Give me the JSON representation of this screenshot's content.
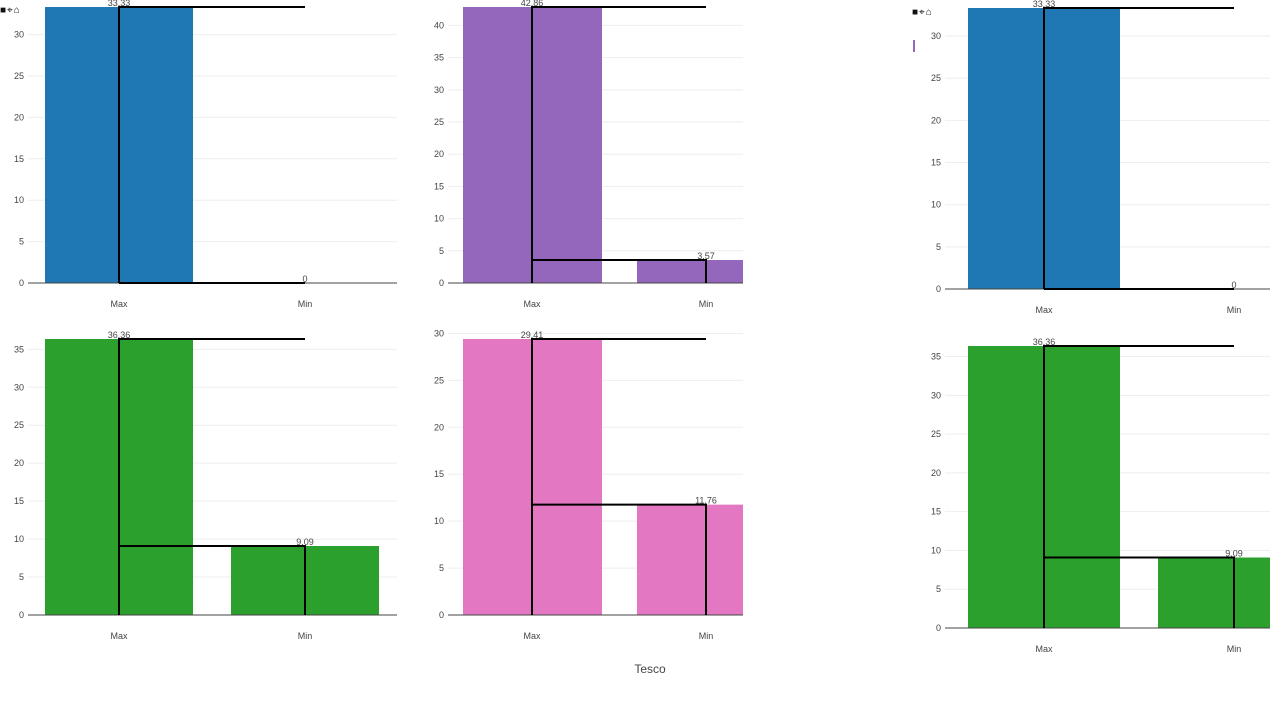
{
  "x_axis_title": "Tesco",
  "toolbar": {
    "icons": [
      "save-icon",
      "zoom-icon",
      "home-icon"
    ],
    "glyphs": [
      "■",
      "⌖",
      "⌂"
    ]
  },
  "legend": {
    "accent": "#9467bd"
  },
  "chart_data": [
    {
      "type": "bar",
      "id": "top-left",
      "categories": [
        "Max",
        "Min"
      ],
      "values": [
        33.33,
        0
      ],
      "value_labels": [
        "33.33",
        "0"
      ],
      "ylim": [
        0,
        33.33
      ],
      "yticks": [
        0,
        5,
        10,
        15,
        20,
        25,
        30
      ],
      "color": "#1f77b4",
      "overlay": "step"
    },
    {
      "type": "bar",
      "id": "top-middle",
      "categories": [
        "Max",
        "Min"
      ],
      "values": [
        42.86,
        3.57
      ],
      "value_labels": [
        "42.86",
        "3.57"
      ],
      "ylim": [
        0,
        42.86
      ],
      "yticks": [
        0,
        5,
        10,
        15,
        20,
        25,
        30,
        35,
        40
      ],
      "color": "#9467bd",
      "overlay": "step"
    },
    {
      "type": "bar",
      "id": "top-right",
      "categories": [
        "Max",
        "Min"
      ],
      "values": [
        33.33,
        0
      ],
      "value_labels": [
        "33.33",
        "0"
      ],
      "ylim": [
        0,
        33.33
      ],
      "yticks": [
        0,
        5,
        10,
        15,
        20,
        25,
        30
      ],
      "color": "#1f77b4",
      "overlay": "step"
    },
    {
      "type": "bar",
      "id": "bottom-left",
      "categories": [
        "Max",
        "Min"
      ],
      "values": [
        36.36,
        9.09
      ],
      "value_labels": [
        "36.36",
        "9.09"
      ],
      "ylim": [
        0,
        36.36
      ],
      "yticks": [
        0,
        5,
        10,
        15,
        20,
        25,
        30,
        35
      ],
      "color": "#2ca02c",
      "overlay": "step"
    },
    {
      "type": "bar",
      "id": "bottom-middle",
      "categories": [
        "Max",
        "Min"
      ],
      "values": [
        29.41,
        11.76
      ],
      "value_labels": [
        "29.41",
        "11.76"
      ],
      "ylim": [
        0,
        29.41
      ],
      "yticks": [
        0,
        5,
        10,
        15,
        20,
        25,
        30
      ],
      "color": "#e377c2",
      "overlay": "step"
    },
    {
      "type": "bar",
      "id": "bottom-right",
      "categories": [
        "Max",
        "Min"
      ],
      "values": [
        36.36,
        9.09
      ],
      "value_labels": [
        "36.36",
        "9.09"
      ],
      "ylim": [
        0,
        36.36
      ],
      "yticks": [
        0,
        5,
        10,
        15,
        20,
        25,
        30,
        35
      ],
      "color": "#2ca02c",
      "overlay": "step"
    }
  ]
}
